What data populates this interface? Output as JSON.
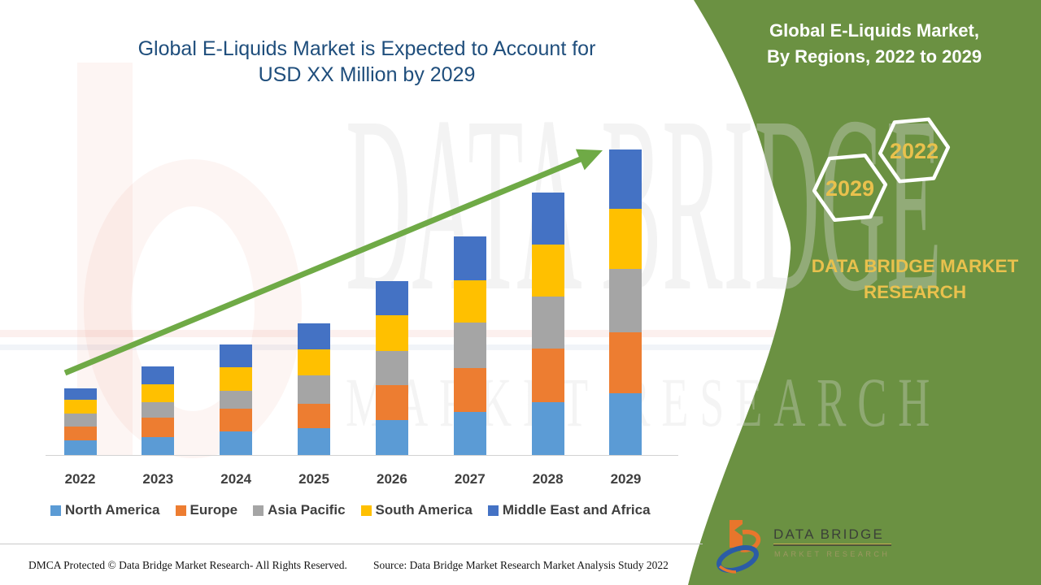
{
  "title": {
    "line1": "Global E-Liquids Market is Expected to Account for",
    "line2": "USD XX Million by 2029"
  },
  "panel": {
    "heading_line1": "Global E-Liquids Market,",
    "heading_line2": "By Regions, 2022 to 2029",
    "hex_back_label": "2022",
    "hex_front_label": "2029",
    "brand_line1": "DATA BRIDGE MARKET",
    "brand_line2": "RESEARCH",
    "bg_color": "#6b9142",
    "accent_color": "#e9c14d"
  },
  "watermark": {
    "line1": "DATA BRIDGE",
    "line2": "MARKET RESEARCH"
  },
  "footer": {
    "dmca": "DMCA Protected © Data Bridge Market Research- All Rights Reserved.",
    "source": "Source: Data Bridge Market Research Market Analysis Study 2022",
    "logo_title": "DATA BRIDGE",
    "logo_subtitle": "MARKET RESEARCH"
  },
  "chart_data": {
    "type": "bar",
    "stacked": true,
    "title": "Global E-Liquids Market is Expected to Account for USD XX Million by 2029",
    "xlabel": "",
    "ylabel": "",
    "units": "relative index (USD XX Million not disclosed)",
    "ylim": [
      0,
      400
    ],
    "legend_position": "bottom",
    "grid": false,
    "trend_arrow": true,
    "arrow_color": "#6faa46",
    "categories": [
      "2022",
      "2023",
      "2024",
      "2025",
      "2026",
      "2027",
      "2028",
      "2029"
    ],
    "series": [
      {
        "name": "North America",
        "color": "#5b9bd5",
        "values": [
          18,
          22,
          29,
          33,
          43,
          53,
          65,
          76
        ]
      },
      {
        "name": "Europe",
        "color": "#ed7d31",
        "values": [
          17,
          24,
          28,
          30,
          43,
          54,
          66,
          75
        ]
      },
      {
        "name": "Asia Pacific",
        "color": "#a5a5a5",
        "values": [
          16,
          19,
          22,
          35,
          42,
          56,
          64,
          78
        ]
      },
      {
        "name": "South America",
        "color": "#ffc000",
        "values": [
          17,
          22,
          29,
          32,
          44,
          52,
          64,
          74
        ]
      },
      {
        "name": "Middle East and Africa",
        "color": "#4472c4",
        "values": [
          14,
          22,
          28,
          32,
          42,
          54,
          64,
          73
        ]
      }
    ]
  }
}
